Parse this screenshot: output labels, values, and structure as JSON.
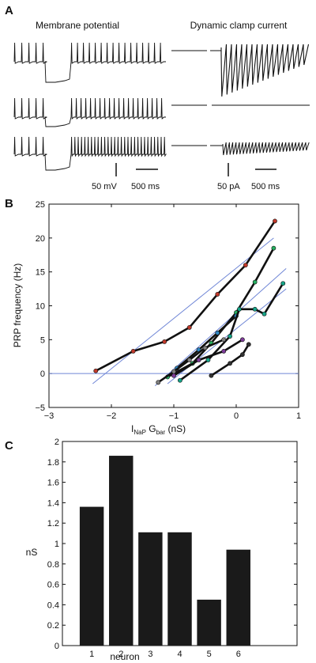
{
  "panel_a": {
    "label": "A",
    "left_title": "Membrane potential",
    "right_title": "Dynamic clamp current",
    "scale_left_v": "50 mV",
    "scale_left_t": "500 ms",
    "scale_right_i": "50 pA",
    "scale_right_t": "500 ms"
  },
  "panel_b": {
    "label": "B",
    "ylabel": "PRP frequency (Hz)",
    "xlabel_parts": {
      "i": "I",
      "sub_nap": "NaP",
      "g": " G",
      "sub_bar": "bar",
      "unit": "  (nS)"
    },
    "xtick_labels": [
      "−3",
      "−2",
      "−1",
      "0",
      "1"
    ],
    "ytick_labels": [
      "−5",
      "0",
      "5",
      "10",
      "15",
      "20",
      "25"
    ]
  },
  "panel_c": {
    "label": "C",
    "ylabel": "nS",
    "xlabel": "neuron",
    "xtick_labels": [
      "1",
      "2",
      "3",
      "4",
      "5",
      "6"
    ],
    "ytick_labels": [
      "0",
      "0.2",
      "0.4",
      "0.6",
      "0.8",
      "1",
      "1.2",
      "1.4",
      "1.6",
      "1.8",
      "2"
    ]
  },
  "chart_data": [
    {
      "type": "line",
      "panel": "B",
      "xlabel": "INaP Gbar (nS)",
      "ylabel": "PRP frequency (Hz)",
      "xlim": [
        -3,
        1
      ],
      "ylim": [
        -5,
        25
      ],
      "xticks": [
        -3,
        -2,
        -1,
        0,
        1
      ],
      "yticks": [
        -5,
        0,
        5,
        10,
        15,
        20,
        25
      ],
      "grid": false,
      "series": [
        {
          "color": "#c0392b",
          "x": [
            -2.25,
            -1.65,
            -1.15,
            -0.75,
            -0.3,
            0.15,
            0.62
          ],
          "y": [
            0.4,
            3.3,
            4.7,
            6.8,
            11.7,
            16.0,
            22.5
          ]
        },
        {
          "color": "#27ae60",
          "x": [
            -1.1,
            -0.7,
            -0.4,
            0.0,
            0.3,
            0.6
          ],
          "y": [
            -0.5,
            1.5,
            4.5,
            9.0,
            13.5,
            18.5
          ]
        },
        {
          "color": "#2e86c1",
          "x": [
            -0.95,
            -0.6,
            -0.3,
            0.0
          ],
          "y": [
            0.8,
            3.5,
            6.0,
            8.5
          ]
        },
        {
          "color": "#17a589",
          "x": [
            -0.9,
            -0.45,
            -0.1,
            0.05,
            0.3,
            0.45,
            0.75
          ],
          "y": [
            -1.0,
            2.0,
            5.5,
            9.5,
            9.5,
            8.8,
            13.3
          ]
        },
        {
          "color": "#7d3c98",
          "x": [
            -1.0,
            -0.6,
            -0.2,
            0.1
          ],
          "y": [
            -0.3,
            2.0,
            3.3,
            5.0
          ]
        },
        {
          "color": "#7f7f7f",
          "x": [
            -1.25,
            -1.0,
            -0.75,
            -0.5,
            -0.2
          ],
          "y": [
            -1.3,
            0.3,
            2.0,
            3.8,
            5.0
          ]
        },
        {
          "color": "#333333",
          "x": [
            -0.4,
            -0.1,
            0.1,
            0.2
          ],
          "y": [
            -0.3,
            1.5,
            2.8,
            4.3
          ]
        }
      ],
      "fit_lines": [
        {
          "color": "#6f86d6",
          "x": [
            -2.3,
            0.6
          ],
          "y": [
            -1.5,
            20.0
          ]
        },
        {
          "color": "#6f86d6",
          "x": [
            -1.3,
            0.8
          ],
          "y": [
            -1.8,
            15.5
          ]
        },
        {
          "color": "#6f86d6",
          "x": [
            -1.1,
            0.8
          ],
          "y": [
            -1.5,
            12.5
          ]
        }
      ],
      "reference_line": {
        "color": "#6f86d6",
        "y": 0
      }
    },
    {
      "type": "bar",
      "panel": "C",
      "xlabel": "neuron",
      "ylabel": "nS",
      "categories": [
        "1",
        "2",
        "3",
        "4",
        "5",
        "6"
      ],
      "values": [
        1.36,
        1.86,
        1.11,
        1.11,
        0.45,
        0.94
      ],
      "ylim": [
        0,
        2
      ],
      "yticks": [
        0,
        0.2,
        0.4,
        0.6,
        0.8,
        1.0,
        1.2,
        1.4,
        1.6,
        1.8,
        2.0
      ],
      "bar_color": "#1a1a1a",
      "grid": false
    }
  ]
}
